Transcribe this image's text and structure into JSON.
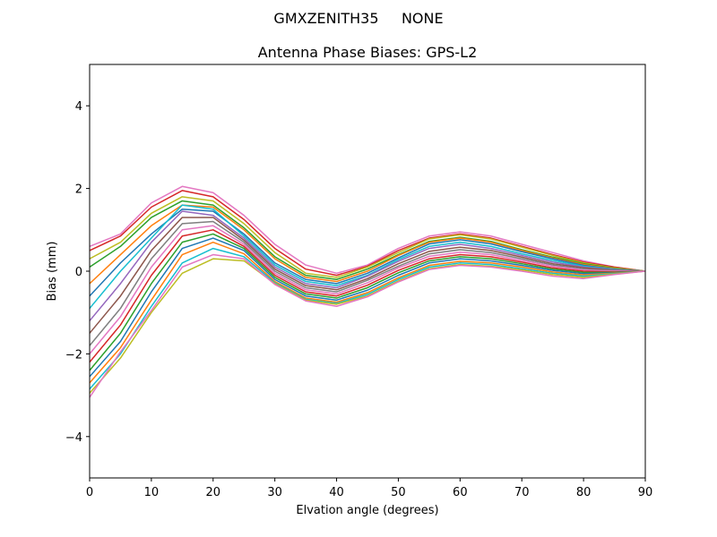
{
  "figure": {
    "suptitle": "GMXZENITH35     NONE"
  },
  "chart_data": {
    "type": "line",
    "title": "Antenna Phase Biases: GPS-L2",
    "xlabel": "Elvation angle (degrees)",
    "ylabel": "Bias (mm)",
    "xlim": [
      0,
      90
    ],
    "ylim": [
      -5,
      5
    ],
    "xticks": [
      0,
      10,
      20,
      30,
      40,
      50,
      60,
      70,
      80,
      90
    ],
    "yticks": [
      -4,
      -2,
      0,
      2,
      4
    ],
    "xtick_labels": [
      "0",
      "10",
      "20",
      "30",
      "40",
      "50",
      "60",
      "70",
      "80",
      "90"
    ],
    "ytick_labels": [
      "−4",
      "−2",
      "0",
      "2",
      "4"
    ],
    "grid": false,
    "x": [
      0,
      5,
      10,
      15,
      20,
      25,
      30,
      35,
      40,
      45,
      50,
      55,
      60,
      65,
      70,
      75,
      80,
      85,
      90
    ],
    "series": [
      {
        "color": "#e377c2",
        "values": [
          0.6,
          0.9,
          1.65,
          2.05,
          1.9,
          1.35,
          0.65,
          0.15,
          -0.05,
          0.15,
          0.55,
          0.85,
          0.95,
          0.85,
          0.65,
          0.45,
          0.25,
          0.1,
          0.0
        ]
      },
      {
        "color": "#d62728",
        "values": [
          0.5,
          0.85,
          1.55,
          1.95,
          1.8,
          1.25,
          0.55,
          0.05,
          -0.1,
          0.12,
          0.5,
          0.8,
          0.9,
          0.8,
          0.6,
          0.4,
          0.22,
          0.1,
          0.0
        ]
      },
      {
        "color": "#bcbd22",
        "values": [
          0.3,
          0.7,
          1.4,
          1.8,
          1.7,
          1.15,
          0.45,
          -0.05,
          -0.15,
          0.1,
          0.45,
          0.78,
          0.88,
          0.78,
          0.58,
          0.38,
          0.2,
          0.08,
          0.0
        ]
      },
      {
        "color": "#2ca02c",
        "values": [
          0.1,
          0.6,
          1.3,
          1.7,
          1.6,
          1.05,
          0.35,
          -0.1,
          -0.2,
          0.05,
          0.4,
          0.72,
          0.82,
          0.72,
          0.52,
          0.34,
          0.18,
          0.07,
          0.0
        ]
      },
      {
        "color": "#ff7f0e",
        "values": [
          -0.3,
          0.4,
          1.1,
          1.6,
          1.55,
          1.0,
          0.3,
          -0.15,
          -0.25,
          0.0,
          0.38,
          0.7,
          0.8,
          0.7,
          0.5,
          0.32,
          0.16,
          0.06,
          0.0
        ]
      },
      {
        "color": "#1f77b4",
        "values": [
          -0.6,
          0.2,
          0.9,
          1.5,
          1.45,
          0.9,
          0.2,
          -0.2,
          -0.3,
          -0.05,
          0.32,
          0.66,
          0.76,
          0.66,
          0.47,
          0.3,
          0.14,
          0.05,
          0.0
        ]
      },
      {
        "color": "#17becf",
        "values": [
          -0.9,
          0.0,
          0.8,
          1.6,
          1.5,
          0.85,
          0.15,
          -0.25,
          -0.35,
          -0.1,
          0.28,
          0.6,
          0.7,
          0.6,
          0.42,
          0.26,
          0.12,
          0.04,
          0.0
        ]
      },
      {
        "color": "#9467bd",
        "values": [
          -1.2,
          -0.3,
          0.7,
          1.45,
          1.35,
          0.8,
          0.1,
          -0.3,
          -0.4,
          -0.12,
          0.24,
          0.55,
          0.65,
          0.55,
          0.38,
          0.22,
          0.1,
          0.03,
          0.0
        ]
      },
      {
        "color": "#8c564b",
        "values": [
          -1.5,
          -0.6,
          0.5,
          1.3,
          1.3,
          0.75,
          0.05,
          -0.35,
          -0.45,
          -0.18,
          0.18,
          0.48,
          0.58,
          0.5,
          0.34,
          0.18,
          0.08,
          0.02,
          0.0
        ]
      },
      {
        "color": "#7f7f7f",
        "values": [
          -1.8,
          -0.9,
          0.3,
          1.15,
          1.2,
          0.7,
          0.0,
          -0.4,
          -0.5,
          -0.22,
          0.12,
          0.42,
          0.52,
          0.45,
          0.3,
          0.15,
          0.05,
          0.01,
          0.0
        ]
      },
      {
        "color": "#e377c2",
        "values": [
          -2.0,
          -1.1,
          0.1,
          1.0,
          1.1,
          0.65,
          -0.05,
          -0.45,
          -0.55,
          -0.28,
          0.08,
          0.36,
          0.46,
          0.4,
          0.26,
          0.12,
          0.03,
          0.0,
          0.0
        ]
      },
      {
        "color": "#d62728",
        "values": [
          -2.2,
          -1.3,
          -0.1,
          0.85,
          1.0,
          0.6,
          -0.1,
          -0.5,
          -0.6,
          -0.34,
          0.02,
          0.3,
          0.4,
          0.35,
          0.22,
          0.08,
          0.0,
          -0.02,
          0.0
        ]
      },
      {
        "color": "#2ca02c",
        "values": [
          -2.4,
          -1.5,
          -0.3,
          0.7,
          0.9,
          0.55,
          -0.15,
          -0.55,
          -0.65,
          -0.4,
          -0.04,
          0.25,
          0.35,
          0.3,
          0.18,
          0.05,
          -0.03,
          -0.03,
          0.0
        ]
      },
      {
        "color": "#1f77b4",
        "values": [
          -2.55,
          -1.7,
          -0.5,
          0.55,
          0.8,
          0.5,
          -0.2,
          -0.6,
          -0.7,
          -0.46,
          -0.1,
          0.2,
          0.3,
          0.25,
          0.14,
          0.02,
          -0.06,
          -0.04,
          0.0
        ]
      },
      {
        "color": "#ff7f0e",
        "values": [
          -2.7,
          -1.85,
          -0.7,
          0.4,
          0.7,
          0.42,
          -0.25,
          -0.65,
          -0.75,
          -0.52,
          -0.16,
          0.14,
          0.24,
          0.2,
          0.1,
          -0.02,
          -0.09,
          -0.05,
          0.0
        ]
      },
      {
        "color": "#17becf",
        "values": [
          -2.85,
          -2.0,
          -0.85,
          0.2,
          0.55,
          0.35,
          -0.28,
          -0.68,
          -0.78,
          -0.56,
          -0.2,
          0.1,
          0.2,
          0.16,
          0.06,
          -0.05,
          -0.12,
          -0.06,
          0.0
        ]
      },
      {
        "color": "#bcbd22",
        "values": [
          -2.95,
          -2.1,
          -1.0,
          -0.05,
          0.3,
          0.25,
          -0.3,
          -0.7,
          -0.8,
          -0.6,
          -0.24,
          0.06,
          0.16,
          0.12,
          0.03,
          -0.08,
          -0.15,
          -0.07,
          0.0
        ]
      },
      {
        "color": "#e377c2",
        "values": [
          -3.05,
          -1.95,
          -0.95,
          0.1,
          0.4,
          0.3,
          -0.32,
          -0.72,
          -0.85,
          -0.62,
          -0.26,
          0.04,
          0.14,
          0.1,
          0.0,
          -0.12,
          -0.18,
          -0.08,
          0.0
        ]
      }
    ]
  }
}
